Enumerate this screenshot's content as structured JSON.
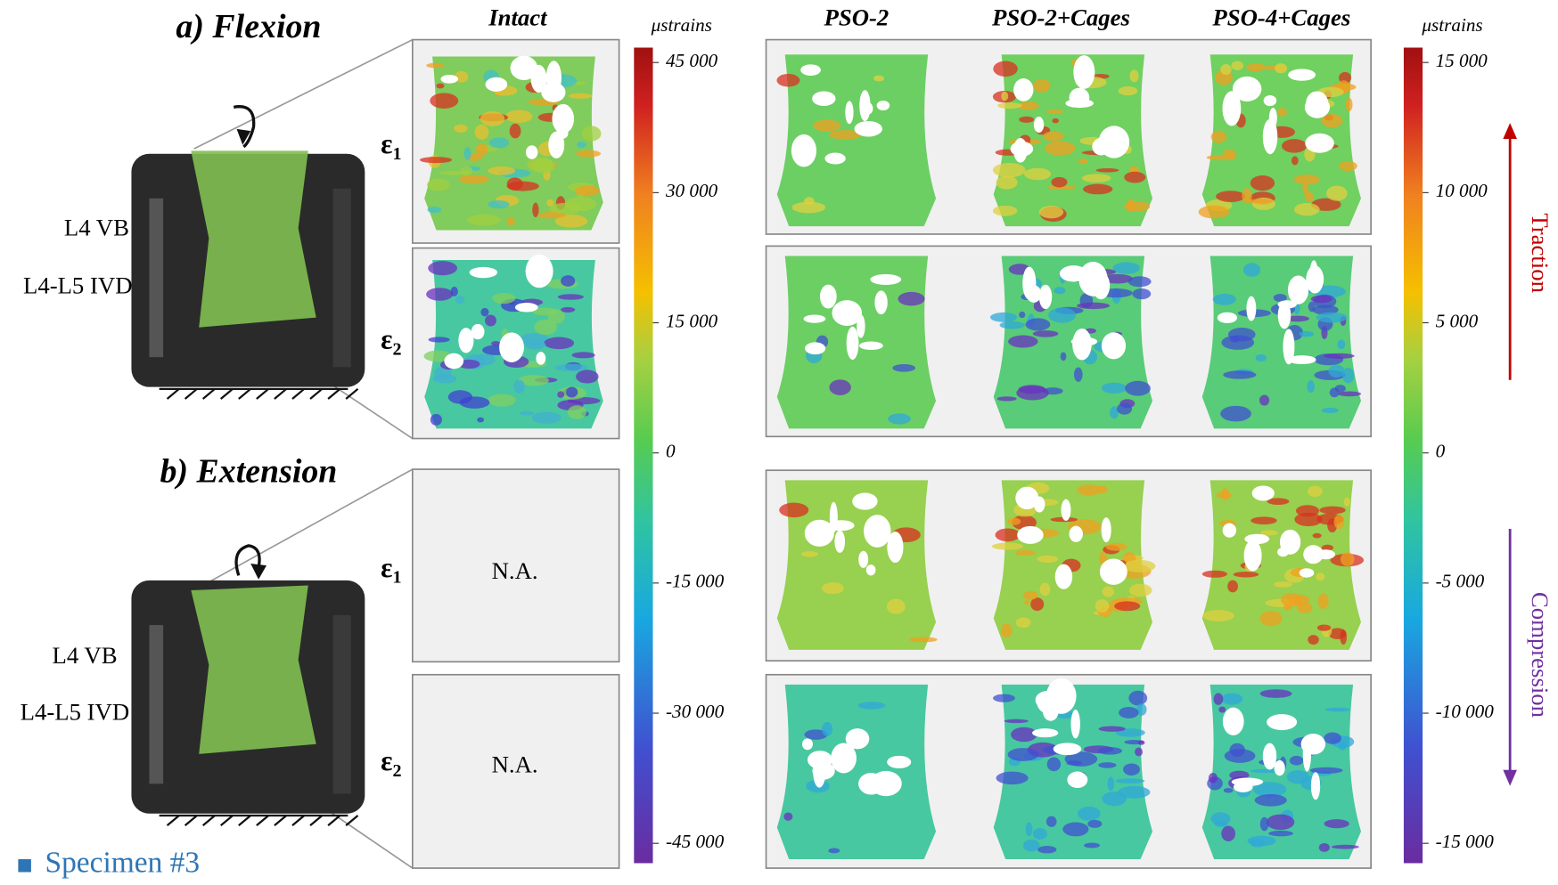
{
  "panels": [
    {
      "title": "a) Flexion",
      "labels": [
        "L4 VB",
        "L4-L5 IVD"
      ]
    },
    {
      "title": "b) Extension",
      "labels": [
        "L4 VB",
        "L4-L5 IVD"
      ]
    }
  ],
  "columns": [
    "Intact",
    "PSO-2",
    "PSO-2+Cages",
    "PSO-4+Cages"
  ],
  "rows": [
    {
      "symbol": "ε",
      "sub": "1"
    },
    {
      "symbol": "ε",
      "sub": "2"
    },
    {
      "symbol": "ε",
      "sub": "1"
    },
    {
      "symbol": "ε",
      "sub": "2"
    }
  ],
  "not_available": [
    "N.A.",
    "N.A."
  ],
  "colorbars": [
    {
      "title": "μstrains",
      "lim": [
        -45000,
        45000
      ],
      "ticks": [
        {
          "value": 45000,
          "label": "45 000"
        },
        {
          "value": 30000,
          "label": "30 000"
        },
        {
          "value": 15000,
          "label": "15 000"
        },
        0,
        {
          "value": -15000,
          "label": "-15 000"
        },
        {
          "value": -30000,
          "label": "-30 000"
        },
        {
          "value": -45000,
          "label": "-45 000"
        }
      ]
    },
    {
      "title": "μstrains",
      "lim": [
        -15000,
        15000
      ],
      "ticks": [
        {
          "value": 15000,
          "label": "15 000"
        },
        {
          "value": 10000,
          "label": "10 000"
        },
        {
          "value": 5000,
          "label": "5 000"
        },
        0,
        {
          "value": -5000,
          "label": "-5 000"
        },
        {
          "value": -10000,
          "label": "-10 000"
        },
        {
          "value": -15000,
          "label": "-15 000"
        }
      ]
    }
  ],
  "arrows": [
    "Traction",
    "Compression"
  ],
  "legend": "Specimen #3"
}
